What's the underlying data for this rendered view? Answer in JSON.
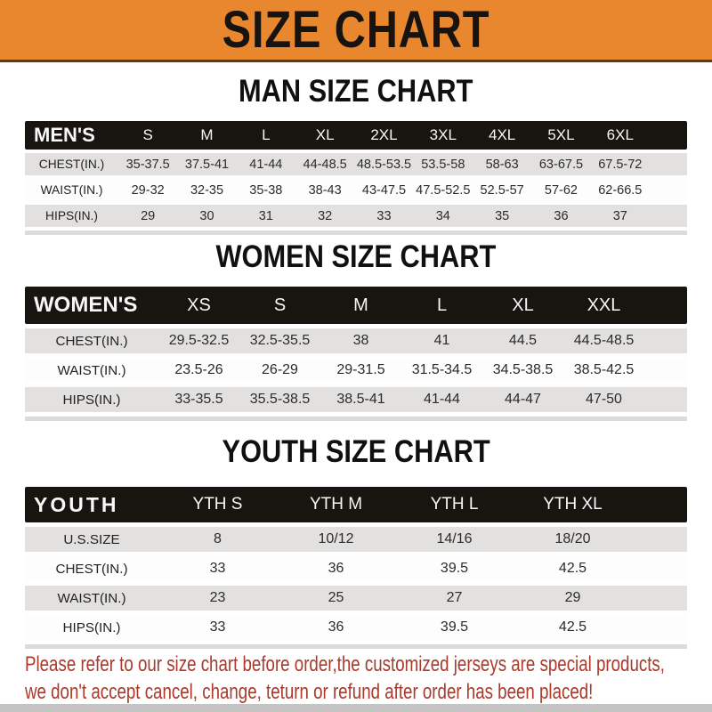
{
  "banner": {
    "title": "SIZE CHART",
    "bg_color": "#E8872E"
  },
  "colors": {
    "header_bar": "#18140F",
    "row_shaded": "#E2E1DF",
    "row_plain": "#FDFDFD",
    "note_text": "#A93A2C"
  },
  "chart_data": [
    {
      "type": "table",
      "title": "MAN SIZE CHART",
      "header_label": "MEN'S",
      "columns": [
        "S",
        "M",
        "L",
        "XL",
        "2XL",
        "3XL",
        "4XL",
        "5XL",
        "6XL"
      ],
      "rows": [
        {
          "label": "CHEST(IN.)",
          "values": [
            "35-37.5",
            "37.5-41",
            "41-44",
            "44-48.5",
            "48.5-53.5",
            "53.5-58",
            "58-63",
            "63-67.5",
            "67.5-72"
          ]
        },
        {
          "label": "WAIST(IN.)",
          "values": [
            "29-32",
            "32-35",
            "35-38",
            "38-43",
            "43-47.5",
            "47.5-52.5",
            "52.5-57",
            "57-62",
            "62-66.5"
          ]
        },
        {
          "label": "HIPS(IN.)",
          "values": [
            "29",
            "30",
            "31",
            "32",
            "33",
            "34",
            "35",
            "36",
            "37"
          ]
        }
      ]
    },
    {
      "type": "table",
      "title": "WOMEN SIZE CHART",
      "header_label": "WOMEN'S",
      "columns": [
        "XS",
        "S",
        "M",
        "L",
        "XL",
        "XXL"
      ],
      "rows": [
        {
          "label": "CHEST(IN.)",
          "values": [
            "29.5-32.5",
            "32.5-35.5",
            "38",
            "41",
            "44.5",
            "44.5-48.5"
          ]
        },
        {
          "label": "WAIST(IN.)",
          "values": [
            "23.5-26",
            "26-29",
            "29-31.5",
            "31.5-34.5",
            "34.5-38.5",
            "38.5-42.5"
          ]
        },
        {
          "label": "HIPS(IN.)",
          "values": [
            "33-35.5",
            "35.5-38.5",
            "38.5-41",
            "41-44",
            "44-47",
            "47-50"
          ]
        }
      ]
    },
    {
      "type": "table",
      "title": "YOUTH SIZE CHART",
      "header_label": "YOUTH",
      "columns": [
        "YTH S",
        "YTH M",
        "YTH L",
        "YTH XL"
      ],
      "rows": [
        {
          "label": "U.S.SIZE",
          "values": [
            "8",
            "10/12",
            "14/16",
            "18/20"
          ]
        },
        {
          "label": "CHEST(IN.)",
          "values": [
            "33",
            "36",
            "39.5",
            "42.5"
          ]
        },
        {
          "label": "WAIST(IN.)",
          "values": [
            "23",
            "25",
            "27",
            "29"
          ]
        },
        {
          "label": "HIPS(IN.)",
          "values": [
            "33",
            "36",
            "39.5",
            "42.5"
          ]
        }
      ]
    }
  ],
  "note": {
    "line1": "Please refer to our size chart before order,the customized jerseys are special products,",
    "line2": "we don't accept cancel, change, teturn or refund after order has been placed!"
  }
}
